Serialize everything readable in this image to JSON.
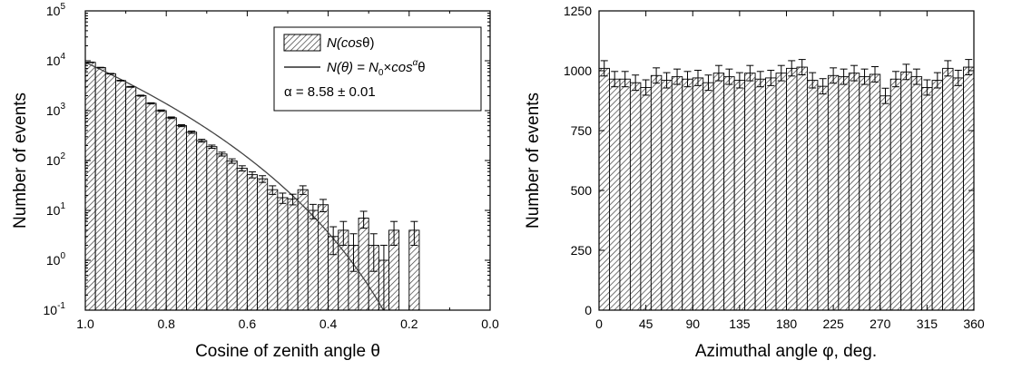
{
  "chart_data": [
    {
      "type": "bar",
      "yscale": "log",
      "xlabel": "Cosine of zenith angle θ",
      "ylabel": "Number of events",
      "xlim": [
        1.0,
        0.0
      ],
      "ylim": [
        0.1,
        100000
      ],
      "x_ticks": [
        "1.0",
        "0.8",
        "0.6",
        "0.4",
        "0.2",
        "0.0"
      ],
      "y_ticks": [
        {
          "base": "10",
          "exp": "-1"
        },
        {
          "base": "10",
          "exp": "0"
        },
        {
          "base": "10",
          "exp": "1"
        },
        {
          "base": "10",
          "exp": "2"
        },
        {
          "base": "10",
          "exp": "3"
        },
        {
          "base": "10",
          "exp": "4"
        },
        {
          "base": "10",
          "exp": "5"
        }
      ],
      "bin_width": 0.025,
      "bins": [
        {
          "x": 0.9875,
          "y": 9300,
          "err": 100
        },
        {
          "x": 0.9625,
          "y": 7300,
          "err": 90
        },
        {
          "x": 0.9375,
          "y": 5500,
          "err": 75
        },
        {
          "x": 0.9125,
          "y": 4000,
          "err": 60
        },
        {
          "x": 0.8875,
          "y": 3000,
          "err": 55
        },
        {
          "x": 0.8625,
          "y": 2000,
          "err": 45
        },
        {
          "x": 0.8375,
          "y": 1400,
          "err": 37
        },
        {
          "x": 0.8125,
          "y": 1000,
          "err": 32
        },
        {
          "x": 0.7875,
          "y": 720,
          "err": 27
        },
        {
          "x": 0.7625,
          "y": 500,
          "err": 22
        },
        {
          "x": 0.7375,
          "y": 370,
          "err": 19
        },
        {
          "x": 0.7125,
          "y": 250,
          "err": 16
        },
        {
          "x": 0.6875,
          "y": 190,
          "err": 14
        },
        {
          "x": 0.6625,
          "y": 135,
          "err": 12
        },
        {
          "x": 0.6375,
          "y": 98,
          "err": 10
        },
        {
          "x": 0.6125,
          "y": 70,
          "err": 8.4
        },
        {
          "x": 0.5875,
          "y": 52,
          "err": 7.2
        },
        {
          "x": 0.5625,
          "y": 43,
          "err": 6.6
        },
        {
          "x": 0.5375,
          "y": 26,
          "err": 5.1
        },
        {
          "x": 0.5125,
          "y": 18,
          "err": 4.2
        },
        {
          "x": 0.4875,
          "y": 17,
          "err": 4.1
        },
        {
          "x": 0.4625,
          "y": 26,
          "err": 5.1
        },
        {
          "x": 0.4375,
          "y": 10,
          "err": 3.2
        },
        {
          "x": 0.4125,
          "y": 13,
          "err": 3.6
        },
        {
          "x": 0.3875,
          "y": 3,
          "err": 1.7
        },
        {
          "x": 0.3625,
          "y": 4,
          "err": 2
        },
        {
          "x": 0.3375,
          "y": 2,
          "err": 1.4
        },
        {
          "x": 0.3125,
          "y": 7,
          "err": 2.6
        },
        {
          "x": 0.2875,
          "y": 2,
          "err": 1.4
        },
        {
          "x": 0.2625,
          "y": 1,
          "err": 1
        },
        {
          "x": 0.2375,
          "y": 4,
          "err": 2
        },
        {
          "x": 0.1875,
          "y": 4,
          "err": 2
        }
      ],
      "fit": {
        "N0": 9300,
        "alpha": 8.58
      },
      "legend": {
        "placement": "top-right",
        "entries": [
          {
            "prefix": "N(",
            "italic_part": "cos",
            "suffix": "θ)"
          },
          {
            "lhs": "N(θ) = ",
            "n": "N",
            "sub": "0",
            "times": "×",
            "cos": "cos",
            "sup": "α",
            "theta": "θ"
          }
        ],
        "alpha_text": "α = 8.58 ± 0.01"
      },
      "grid": false
    },
    {
      "type": "bar",
      "xlabel": "Azimuthal angle φ, deg.",
      "ylabel": "Number of events",
      "xlim": [
        0,
        360
      ],
      "ylim": [
        0,
        1250
      ],
      "x_ticks": [
        "0",
        "45",
        "90",
        "135",
        "180",
        "225",
        "270",
        "315",
        "360"
      ],
      "y_ticks": [
        "0",
        "250",
        "500",
        "750",
        "1000",
        "1250"
      ],
      "bin_width": 10,
      "values": [
        1010,
        965,
        965,
        950,
        930,
        980,
        960,
        975,
        965,
        970,
        950,
        990,
        975,
        960,
        990,
        965,
        970,
        990,
        1010,
        1015,
        960,
        935,
        980,
        975,
        990,
        975,
        985,
        895,
        965,
        995,
        975,
        930,
        960,
        1010,
        970,
        1015
      ],
      "error": 32,
      "grid": false
    }
  ]
}
